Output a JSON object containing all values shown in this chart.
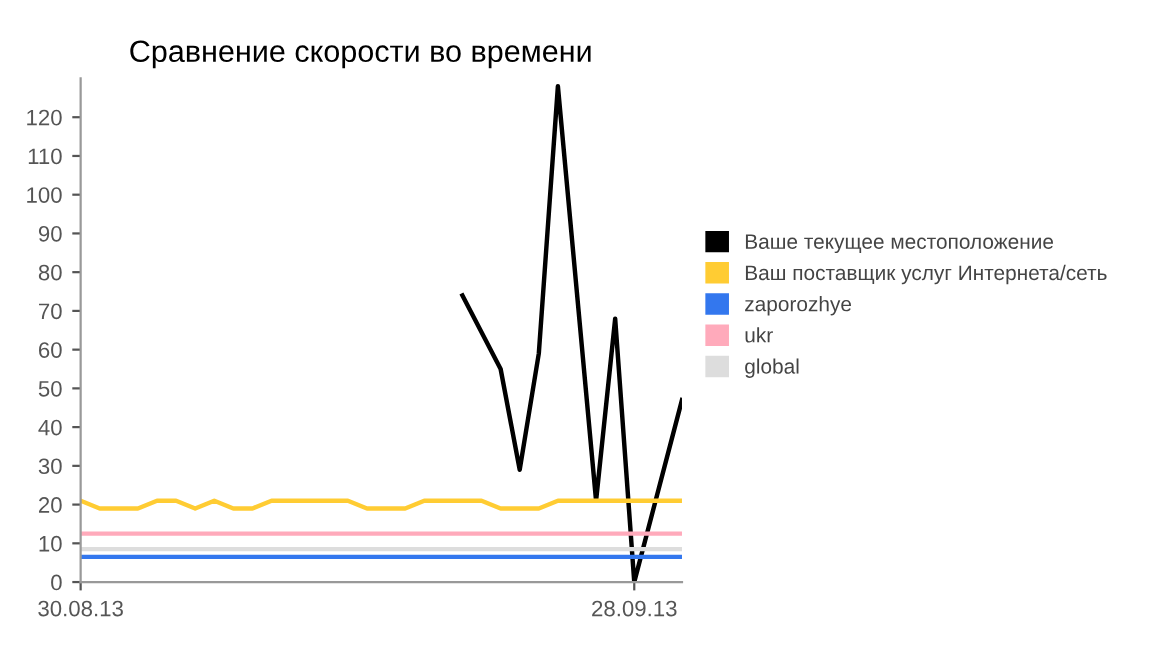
{
  "chart_data": {
    "type": "line",
    "title": "Сравнение скорости во времени",
    "xlim": [
      "2013-08-30",
      "2013-09-30T12:00"
    ],
    "ylim": [
      0,
      130
    ],
    "xticks": [
      {
        "value": "2013-08-30",
        "label": "30.08.13"
      },
      {
        "value": "2013-09-28",
        "label": "28.09.13"
      }
    ],
    "yticks": [
      0,
      10,
      20,
      30,
      40,
      50,
      60,
      70,
      80,
      90,
      100,
      110,
      120
    ],
    "grid": false,
    "legend": "right",
    "marker": "none",
    "line_style": "solid",
    "series": [
      {
        "name": "Ваше текущее местоположение",
        "color": "#000000",
        "x": [
          "2013-09-19",
          "2013-09-21",
          "2013-09-22",
          "2013-09-23",
          "2013-09-24",
          "2013-09-26",
          "2013-09-27",
          "2013-09-28",
          "2013-09-30T12:00"
        ],
        "values": [
          74,
          55,
          29,
          59,
          128,
          21,
          68,
          0,
          47
        ]
      },
      {
        "name": "Ваш поставщик услуг Интернета/сеть",
        "color": "#ffcc33",
        "x": [
          "2013-08-30",
          "2013-08-31",
          "2013-09-01",
          "2013-09-02",
          "2013-09-03",
          "2013-09-04",
          "2013-09-05",
          "2013-09-06",
          "2013-09-07",
          "2013-09-08",
          "2013-09-09",
          "2013-09-10",
          "2013-09-11",
          "2013-09-12",
          "2013-09-13",
          "2013-09-14",
          "2013-09-15",
          "2013-09-16",
          "2013-09-17",
          "2013-09-18",
          "2013-09-19",
          "2013-09-20",
          "2013-09-21",
          "2013-09-22",
          "2013-09-23",
          "2013-09-24",
          "2013-09-25",
          "2013-09-26",
          "2013-09-27",
          "2013-09-28",
          "2013-09-30T12:00"
        ],
        "values": [
          21,
          19,
          19,
          19,
          21,
          21,
          19,
          21,
          19,
          19,
          21,
          21,
          21,
          21,
          21,
          19,
          19,
          19,
          21,
          21,
          21,
          21,
          19,
          19,
          19,
          21,
          21,
          21,
          21,
          21,
          21
        ]
      },
      {
        "name": "zaporozhye",
        "color": "#3377ee",
        "x": [
          "2013-08-30",
          "2013-09-30T12:00"
        ],
        "values": [
          6.5,
          6.5
        ]
      },
      {
        "name": "ukr",
        "color": "#ffaabb",
        "x": [
          "2013-08-30",
          "2013-09-30T12:00"
        ],
        "values": [
          12.5,
          12.5
        ]
      },
      {
        "name": "global",
        "color": "#dddddd",
        "x": [
          "2013-08-30",
          "2013-09-30T12:00"
        ],
        "values": [
          8.5,
          8.5
        ]
      }
    ]
  }
}
